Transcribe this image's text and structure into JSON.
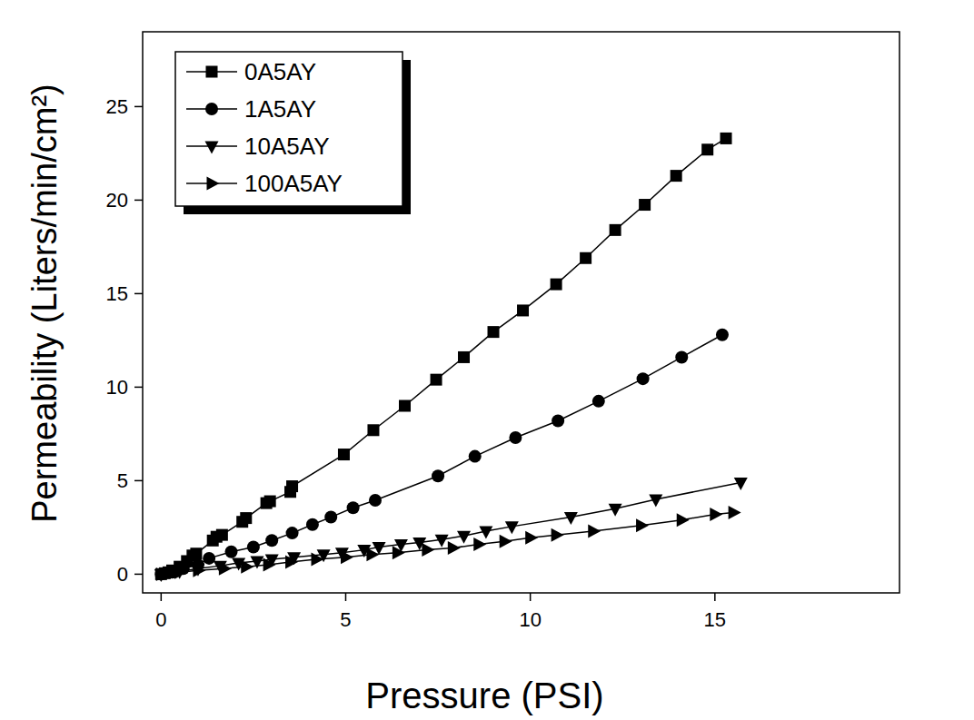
{
  "chart_data": {
    "type": "line",
    "x_label": "Pressure (PSI)",
    "y_label": "Permeability (Liters/min/cm²)",
    "xlim": [
      -0.5,
      20
    ],
    "ylim": [
      -1,
      29
    ],
    "xticks": [
      0,
      5,
      10,
      15
    ],
    "yticks": [
      0,
      5,
      10,
      15,
      20,
      25
    ],
    "grid": false,
    "legend": "upper left",
    "series": [
      {
        "name": "0A5AY",
        "color": "#000000",
        "marker": "square",
        "line_style": "solid",
        "x": [
          0,
          0.1,
          0.2,
          0.3,
          0.5,
          0.7,
          0.85,
          0.95,
          1.4,
          1.5,
          1.65,
          2.2,
          2.3,
          2.85,
          2.95,
          3.5,
          3.55,
          4.95,
          5.75,
          6.6,
          7.45,
          8.2,
          9.0,
          9.8,
          10.7,
          11.5,
          12.3,
          13.1,
          13.95,
          14.8,
          15.3
        ],
        "values": [
          0,
          0.05,
          0.1,
          0.2,
          0.4,
          0.7,
          1.0,
          1.1,
          1.8,
          2.0,
          2.1,
          2.8,
          3.0,
          3.8,
          3.9,
          4.4,
          4.7,
          6.4,
          7.7,
          9.0,
          10.4,
          11.6,
          12.95,
          14.1,
          15.5,
          16.9,
          18.4,
          19.75,
          21.3,
          22.7,
          23.3
        ]
      },
      {
        "name": "1A5AY",
        "color": "#000000",
        "marker": "circle",
        "line_style": "solid",
        "x": [
          0,
          0.3,
          0.6,
          1.0,
          1.3,
          1.9,
          2.5,
          3.0,
          3.55,
          4.1,
          4.6,
          5.2,
          5.8,
          7.5,
          8.5,
          9.6,
          10.75,
          11.85,
          13.05,
          14.1,
          15.2
        ],
        "values": [
          0,
          0.1,
          0.3,
          0.5,
          0.85,
          1.2,
          1.45,
          1.8,
          2.2,
          2.65,
          3.05,
          3.55,
          3.95,
          5.25,
          6.3,
          7.3,
          8.2,
          9.25,
          10.45,
          11.6,
          12.8
        ]
      },
      {
        "name": "10A5AY",
        "color": "#000000",
        "marker": "triangle-down",
        "line_style": "solid",
        "x": [
          0,
          0.5,
          1.0,
          1.6,
          2.1,
          2.6,
          3.0,
          3.6,
          4.4,
          4.9,
          5.5,
          5.9,
          6.5,
          7.0,
          7.6,
          8.2,
          8.8,
          9.5,
          11.1,
          12.3,
          13.4,
          15.7
        ],
        "values": [
          0,
          0.15,
          0.3,
          0.45,
          0.6,
          0.7,
          0.8,
          0.9,
          1.05,
          1.15,
          1.3,
          1.45,
          1.6,
          1.7,
          1.85,
          2.05,
          2.3,
          2.55,
          3.05,
          3.5,
          4.0,
          4.9
        ]
      },
      {
        "name": "100A5AY",
        "color": "#000000",
        "marker": "triangle-right",
        "line_style": "solid",
        "x": [
          0,
          0.5,
          1.0,
          1.7,
          2.3,
          2.9,
          3.5,
          4.2,
          5.0,
          5.7,
          6.4,
          7.2,
          7.9,
          8.6,
          9.3,
          10.0,
          10.7,
          11.7,
          13.0,
          14.1,
          15.0,
          15.5
        ],
        "values": [
          0,
          0.1,
          0.2,
          0.3,
          0.4,
          0.5,
          0.65,
          0.8,
          0.9,
          1.05,
          1.15,
          1.3,
          1.4,
          1.6,
          1.75,
          1.95,
          2.1,
          2.3,
          2.6,
          2.9,
          3.2,
          3.3
        ]
      }
    ]
  }
}
